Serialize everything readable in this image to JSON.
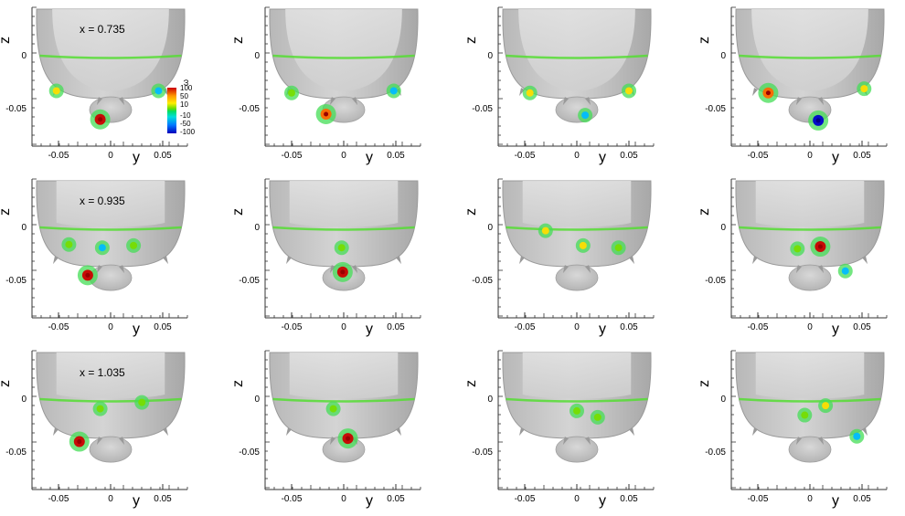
{
  "chart_data": {
    "type": "scatter",
    "description_rows": [
      "x = 0.735",
      "x = 0.935",
      "x = 1.035"
    ],
    "xlabel": "y",
    "ylabel": "z",
    "x_ticks": [
      "-0.05",
      "0",
      "0.05"
    ],
    "y_ticks": [
      "0",
      "-0.05"
    ],
    "xlim": [
      -0.08,
      0.08
    ],
    "ylim": [
      -0.09,
      0.03
    ],
    "legend": {
      "symbol": "ω",
      "labels": [
        "100",
        "50",
        "10",
        "-10",
        "-50",
        "-100"
      ],
      "placement": "inside first panel, right of hull"
    },
    "panels": [
      {
        "row": 0,
        "col": 0,
        "row_label": "x = 0.735",
        "vortices": [
          {
            "y": -0.01,
            "z": -0.061,
            "omega": 100
          },
          {
            "y": -0.052,
            "z": -0.034,
            "omega": 30
          },
          {
            "y": 0.046,
            "z": -0.034,
            "omega": -30
          }
        ]
      },
      {
        "row": 0,
        "col": 1,
        "row_label": "",
        "vortices": [
          {
            "y": -0.017,
            "z": -0.056,
            "omega": 60
          },
          {
            "y": -0.05,
            "z": -0.036,
            "omega": 20
          },
          {
            "y": 0.048,
            "z": -0.034,
            "omega": -25
          }
        ]
      },
      {
        "row": 0,
        "col": 2,
        "row_label": "",
        "vortices": [
          {
            "y": 0.008,
            "z": -0.057,
            "omega": -20
          },
          {
            "y": -0.045,
            "z": -0.036,
            "omega": 50
          },
          {
            "y": 0.05,
            "z": -0.034,
            "omega": 40
          }
        ]
      },
      {
        "row": 0,
        "col": 3,
        "row_label": "",
        "vortices": [
          {
            "y": 0.008,
            "z": -0.062,
            "omega": -100
          },
          {
            "y": -0.04,
            "z": -0.036,
            "omega": 60
          },
          {
            "y": 0.052,
            "z": -0.032,
            "omega": 30
          }
        ]
      },
      {
        "row": 1,
        "col": 0,
        "row_label": "x = 0.935",
        "vortices": [
          {
            "y": -0.022,
            "z": -0.046,
            "omega": 100
          },
          {
            "y": -0.008,
            "z": -0.02,
            "omega": -30
          },
          {
            "y": 0.022,
            "z": -0.018,
            "omega": 20
          },
          {
            "y": -0.04,
            "z": -0.017,
            "omega": 15
          }
        ]
      },
      {
        "row": 1,
        "col": 1,
        "row_label": "",
        "vortices": [
          {
            "y": -0.001,
            "z": -0.043,
            "omega": 100
          },
          {
            "y": -0.002,
            "z": -0.02,
            "omega": 15
          }
        ]
      },
      {
        "row": 1,
        "col": 2,
        "row_label": "",
        "vortices": [
          {
            "y": 0.006,
            "z": -0.018,
            "omega": 50
          },
          {
            "y": 0.04,
            "z": -0.02,
            "omega": 15
          },
          {
            "y": -0.03,
            "z": -0.004,
            "omega": 40
          }
        ]
      },
      {
        "row": 1,
        "col": 3,
        "row_label": "",
        "vortices": [
          {
            "y": 0.034,
            "z": -0.042,
            "omega": -20
          },
          {
            "y": 0.01,
            "z": -0.019,
            "omega": 100
          },
          {
            "y": -0.012,
            "z": -0.021,
            "omega": 20
          }
        ]
      },
      {
        "row": 2,
        "col": 0,
        "row_label": "x = 1.035",
        "vortices": [
          {
            "y": -0.03,
            "z": -0.041,
            "omega": 100
          },
          {
            "y": -0.01,
            "z": -0.01,
            "omega": 20
          },
          {
            "y": 0.03,
            "z": -0.004,
            "omega": 15
          }
        ]
      },
      {
        "row": 2,
        "col": 1,
        "row_label": "",
        "vortices": [
          {
            "y": 0.004,
            "z": -0.038,
            "omega": 100
          },
          {
            "y": -0.01,
            "z": -0.01,
            "omega": 15
          }
        ]
      },
      {
        "row": 2,
        "col": 2,
        "row_label": "",
        "vortices": [
          {
            "y": 0.0,
            "z": -0.012,
            "omega": 20
          },
          {
            "y": 0.02,
            "z": -0.018,
            "omega": 15
          }
        ]
      },
      {
        "row": 2,
        "col": 3,
        "row_label": "",
        "vortices": [
          {
            "y": 0.045,
            "z": -0.036,
            "omega": -20
          },
          {
            "y": 0.015,
            "z": -0.007,
            "omega": 50
          },
          {
            "y": -0.005,
            "z": -0.016,
            "omega": 20
          }
        ]
      }
    ]
  }
}
